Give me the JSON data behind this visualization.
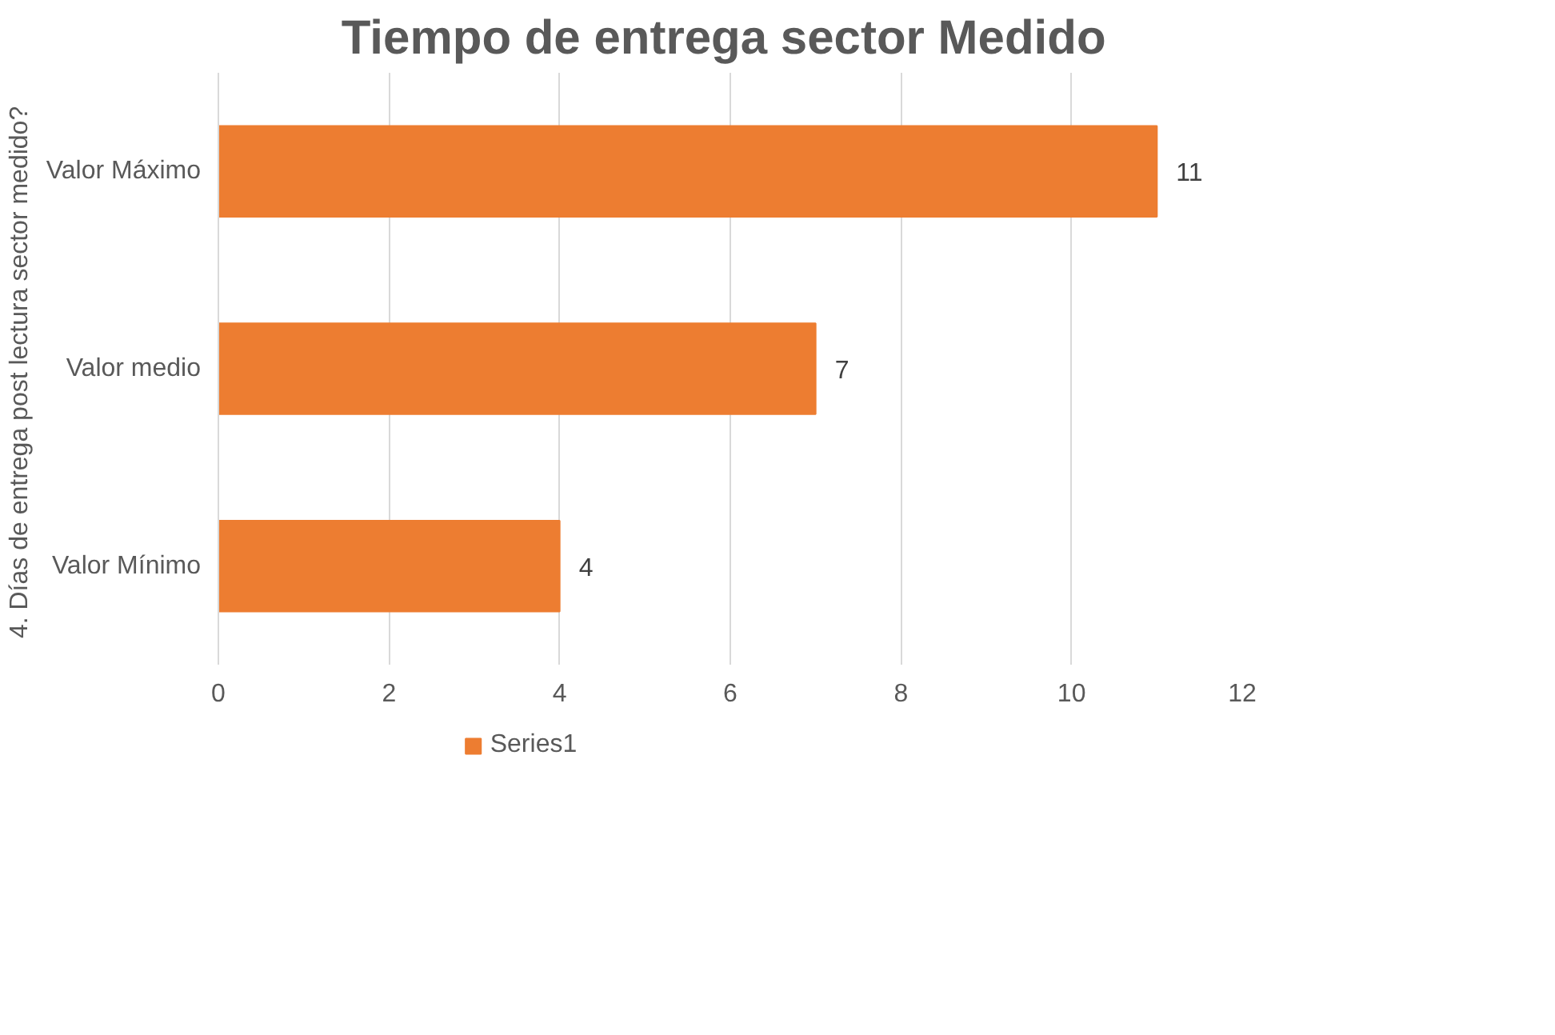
{
  "chart_data": {
    "type": "bar",
    "orientation": "horizontal",
    "title": "Tiempo de entrega  sector Medido",
    "ylabel": "4. Días de entrega  post lectura sector medido?",
    "categories": [
      "Valor Máximo",
      "Valor medio",
      "Valor Mínimo"
    ],
    "series": [
      {
        "name": "Series1",
        "color": "#ed7d31",
        "values": [
          11,
          7,
          4
        ]
      }
    ],
    "xlim": [
      0,
      12
    ],
    "xticks": [
      0,
      2,
      4,
      6,
      8,
      10,
      12
    ],
    "grid": "x",
    "legend": "bottom",
    "data_labels": true
  }
}
